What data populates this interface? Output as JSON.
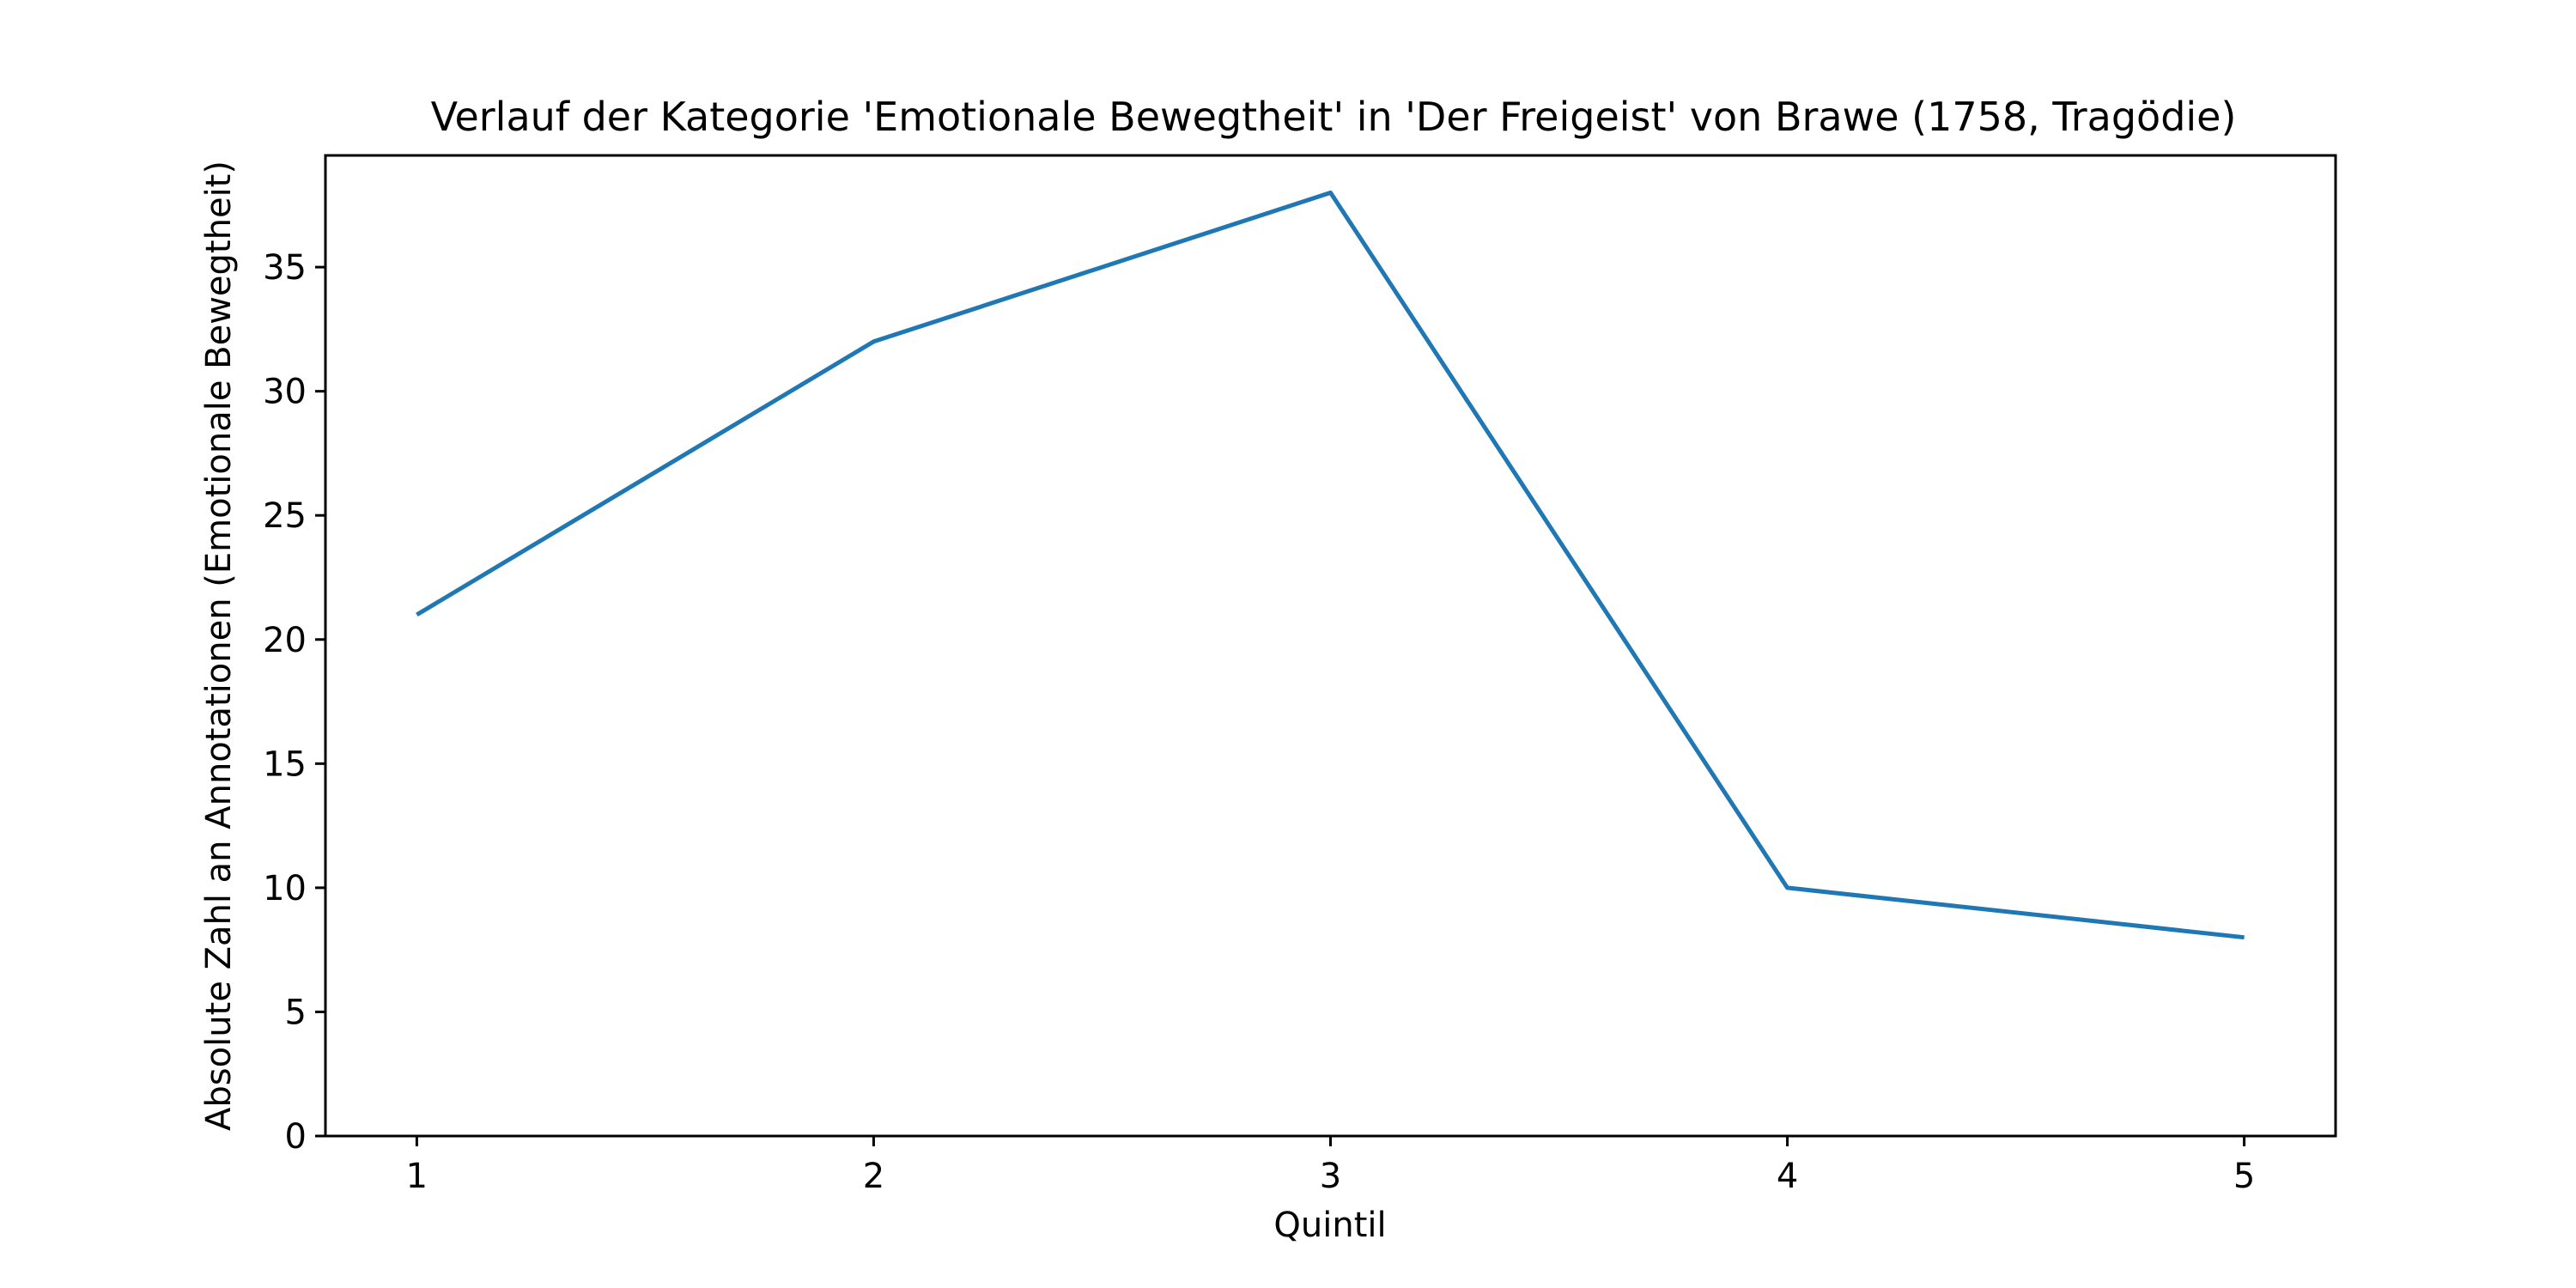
{
  "chart_data": {
    "type": "line",
    "title": "Verlauf der Kategorie 'Emotionale Bewegtheit' in 'Der Freigeist' von Brawe (1758, Tragödie)",
    "xlabel": "Quintil",
    "ylabel": "Absolute Zahl an Annotationen (Emotionale Bewegtheit)",
    "x": [
      1,
      2,
      3,
      4,
      5
    ],
    "series": [
      {
        "values": [
          21,
          32,
          38,
          10,
          8
        ]
      }
    ],
    "xticks": [
      "1",
      "2",
      "3",
      "4",
      "5"
    ],
    "yticks": [
      "0",
      "5",
      "10",
      "15",
      "20",
      "25",
      "30",
      "35"
    ],
    "xlim": [
      0.8,
      5.2
    ],
    "ylim": [
      0,
      39.5
    ],
    "grid": false,
    "legend": "none",
    "line_color": "#1f77b4"
  }
}
